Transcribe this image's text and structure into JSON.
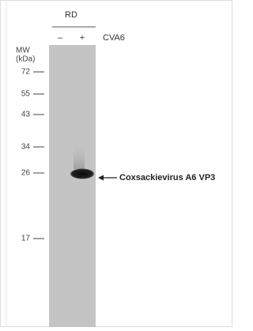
{
  "header": {
    "cell_line": "RD",
    "lanes": [
      "–",
      "+"
    ],
    "treatment": "CVA6"
  },
  "mw": {
    "label": "MW",
    "unit": "(kDa)",
    "markers": [
      72,
      55,
      43,
      34,
      26,
      17
    ]
  },
  "band_label": "Coxsackievirus A6 VP3"
}
